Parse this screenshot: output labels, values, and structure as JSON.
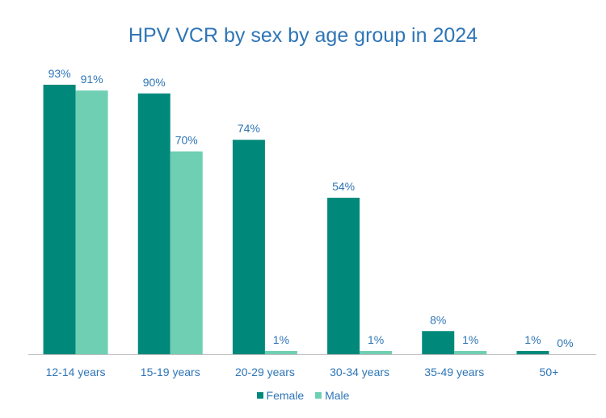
{
  "chart_data": {
    "type": "bar",
    "title": "HPV VCR by sex by age group in 2024",
    "categories": [
      "12-14 years",
      "15-19 years",
      "20-29 years",
      "30-34 years",
      "35-49 years",
      "50+"
    ],
    "series": [
      {
        "name": "Female",
        "color": "#00897B",
        "values": [
          93,
          90,
          74,
          54,
          8,
          1
        ],
        "labels": [
          "93%",
          "90%",
          "74%",
          "54%",
          "8%",
          "1%"
        ]
      },
      {
        "name": "Male",
        "color": "#6FCFB3",
        "values": [
          91,
          70,
          1,
          1,
          1,
          0
        ],
        "labels": [
          "91%",
          "70%",
          "1%",
          "1%",
          "1%",
          "0%"
        ]
      }
    ],
    "ylim": [
      0,
      93
    ],
    "xlabel": "",
    "ylabel": "",
    "grid": false,
    "legend": "bottom",
    "text_color": "#2E75B6",
    "axis_color": "#BFBFBF"
  }
}
